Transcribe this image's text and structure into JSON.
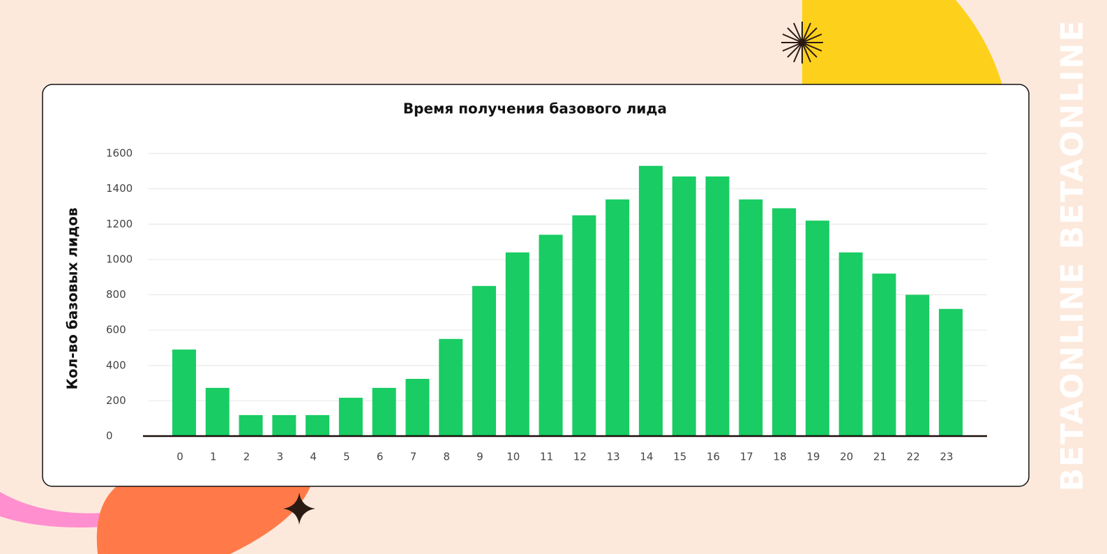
{
  "chart_data": {
    "type": "bar",
    "title": "Время получения базового лида",
    "y_label": "Кол-во базовых лидов",
    "categories": [
      "0",
      "1",
      "2",
      "3",
      "4",
      "5",
      "6",
      "7",
      "8",
      "9",
      "10",
      "11",
      "12",
      "13",
      "14",
      "15",
      "16",
      "17",
      "18",
      "19",
      "20",
      "21",
      "22",
      "23"
    ],
    "values": [
      490,
      273,
      119,
      119,
      119,
      217,
      273,
      324,
      550,
      850,
      1040,
      1140,
      1250,
      1340,
      1530,
      1470,
      1470,
      1340,
      1290,
      1220,
      1040,
      920,
      800,
      720
    ],
    "color": "#19cc63",
    "ylim": [
      0,
      1600
    ],
    "yticks": [
      0,
      200,
      400,
      600,
      800,
      1000,
      1200,
      1400,
      1600
    ],
    "grid": true
  },
  "watermark": "BETAONLINE BETAONLINE"
}
